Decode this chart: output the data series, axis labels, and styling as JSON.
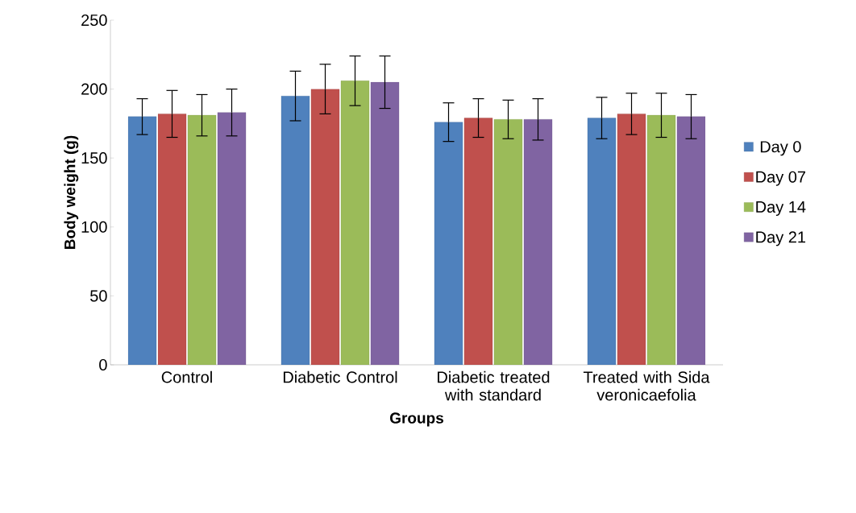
{
  "chart_data": {
    "type": "bar",
    "xlabel": "Groups",
    "ylabel": "Body weight (g)",
    "categories": [
      "Control",
      "Diabetic Control",
      "Diabetic treated with standard",
      "Treated with Sida veronicaefolia"
    ],
    "series": [
      {
        "name": "Day 0",
        "color": "#4f81bd",
        "values": [
          180,
          195,
          176,
          179
        ],
        "errors": [
          13,
          18,
          14,
          15
        ]
      },
      {
        "name": "Day 07",
        "color": "#c0504d",
        "values": [
          182,
          200,
          179,
          182
        ],
        "errors": [
          17,
          18,
          14,
          15
        ]
      },
      {
        "name": "Day 14",
        "color": "#9bbb59",
        "values": [
          181,
          206,
          178,
          181
        ],
        "errors": [
          15,
          18,
          14,
          16
        ]
      },
      {
        "name": "Day 21",
        "color": "#8064a2",
        "values": [
          183,
          205,
          178,
          180
        ],
        "errors": [
          17,
          19,
          15,
          16
        ]
      }
    ],
    "ylim": [
      0,
      250
    ],
    "yticks": [
      0,
      50,
      100,
      150,
      200,
      250
    ],
    "grid": false,
    "legend": "right"
  }
}
